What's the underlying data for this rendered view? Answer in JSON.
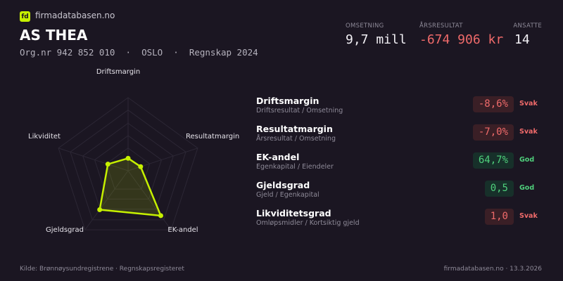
{
  "brand": {
    "logo_text": "fd",
    "site": "firmadatabasen.no"
  },
  "company": {
    "name": "AS THEA",
    "subtitle": "Org.nr 942 852 010  ·  OSLO  ·  Regnskap 2024"
  },
  "stats": [
    {
      "label": "OMSETNING",
      "value": "9,7 mill",
      "tone": "neutral"
    },
    {
      "label": "ÅRSRESULTAT",
      "value": "-674 906 kr",
      "tone": "negative"
    },
    {
      "label": "ANSATTE",
      "value": "14",
      "tone": "neutral"
    }
  ],
  "metrics": [
    {
      "name": "Driftsmargin",
      "formula": "Driftsresultat / Omsetning",
      "value": "-8,6%",
      "status": "Svak",
      "tone": "bad"
    },
    {
      "name": "Resultatmargin",
      "formula": "Årsresultat / Omsetning",
      "value": "-7,0%",
      "status": "Svak",
      "tone": "bad"
    },
    {
      "name": "EK-andel",
      "formula": "Egenkapital / Eiendeler",
      "value": "64,7%",
      "status": "God",
      "tone": "good"
    },
    {
      "name": "Gjeldsgrad",
      "formula": "Gjeld / Egenkapital",
      "value": "0,5",
      "status": "God",
      "tone": "good"
    },
    {
      "name": "Likviditetsgrad",
      "formula": "Omløpsmidler / Kortsiktig gjeld",
      "value": "1,0",
      "status": "Svak",
      "tone": "bad"
    }
  ],
  "chart_data": {
    "type": "radar",
    "axes": [
      "Driftsmargin",
      "Resultatmargin",
      "EK-andel",
      "Gjeldsgrad",
      "Likviditet"
    ],
    "scores": [
      0.17,
      0.18,
      0.76,
      0.66,
      0.29
    ],
    "range": [
      0,
      1
    ],
    "grid": true,
    "color": "#c6f000"
  },
  "footer": {
    "source": "Kilde: Brønnøysundregistrene · Regnskapsregisteret",
    "right": "firmadatabasen.no · 13.3.2026"
  },
  "colors": {
    "background": "#1b1622",
    "accent": "#c6f000",
    "negative": "#ef6a6a",
    "positive": "#4fd07c"
  }
}
